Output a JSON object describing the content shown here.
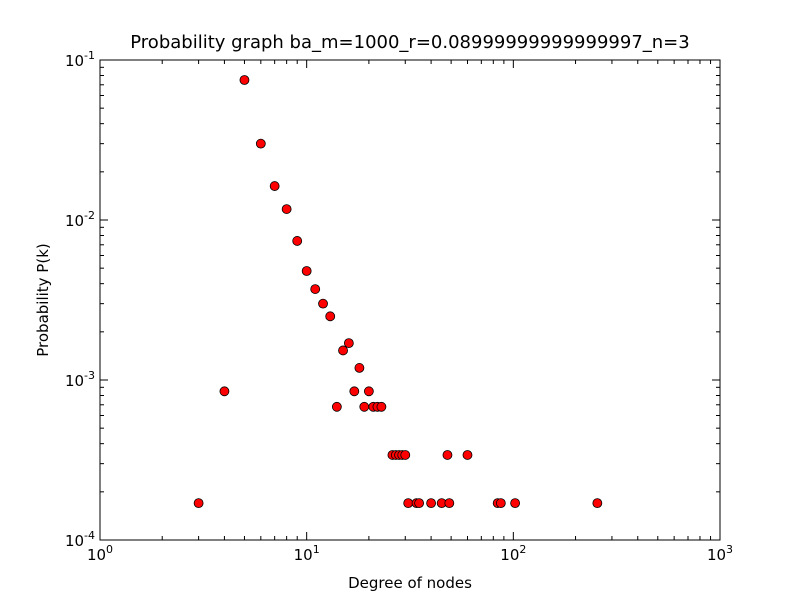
{
  "chart_data": {
    "type": "scatter",
    "title": "Probability graph ba_m=1000_r=0.08999999999999997_n=3",
    "xlabel": "Degree of nodes",
    "ylabel": "Probability P(k)",
    "xscale": "log",
    "yscale": "log",
    "xlim": [
      1,
      1000
    ],
    "ylim": [
      0.0001,
      0.1
    ],
    "grid": false,
    "legend": "none",
    "marker_color": "#ff0000",
    "marker_edge_color": "#000000",
    "x_ticks": [
      {
        "value": 1,
        "base": "10",
        "exp": "0"
      },
      {
        "value": 10,
        "base": "10",
        "exp": "1"
      },
      {
        "value": 100,
        "base": "10",
        "exp": "2"
      },
      {
        "value": 1000,
        "base": "10",
        "exp": "3"
      }
    ],
    "y_ticks": [
      {
        "value": 0.0001,
        "base": "10",
        "exp": "-4"
      },
      {
        "value": 0.001,
        "base": "10",
        "exp": "-3"
      },
      {
        "value": 0.01,
        "base": "10",
        "exp": "-2"
      },
      {
        "value": 0.1,
        "base": "10",
        "exp": "-1"
      }
    ],
    "points": [
      {
        "x": 3,
        "y": 0.00017
      },
      {
        "x": 4,
        "y": 0.00085
      },
      {
        "x": 5,
        "y": 0.075
      },
      {
        "x": 6,
        "y": 0.03
      },
      {
        "x": 7,
        "y": 0.0163
      },
      {
        "x": 8,
        "y": 0.0117
      },
      {
        "x": 9,
        "y": 0.0074
      },
      {
        "x": 10,
        "y": 0.0048
      },
      {
        "x": 11,
        "y": 0.0037
      },
      {
        "x": 12,
        "y": 0.003
      },
      {
        "x": 13,
        "y": 0.0025
      },
      {
        "x": 14,
        "y": 0.00068
      },
      {
        "x": 15,
        "y": 0.00153
      },
      {
        "x": 16,
        "y": 0.0017
      },
      {
        "x": 17,
        "y": 0.00085
      },
      {
        "x": 18,
        "y": 0.00119
      },
      {
        "x": 19,
        "y": 0.00068
      },
      {
        "x": 20,
        "y": 0.00085
      },
      {
        "x": 21,
        "y": 0.00068
      },
      {
        "x": 22,
        "y": 0.00068
      },
      {
        "x": 23,
        "y": 0.00068
      },
      {
        "x": 26,
        "y": 0.00034
      },
      {
        "x": 27,
        "y": 0.00034
      },
      {
        "x": 28,
        "y": 0.00034
      },
      {
        "x": 29,
        "y": 0.00034
      },
      {
        "x": 30,
        "y": 0.00034
      },
      {
        "x": 31,
        "y": 0.00017
      },
      {
        "x": 34,
        "y": 0.00017
      },
      {
        "x": 35,
        "y": 0.00017
      },
      {
        "x": 40,
        "y": 0.00017
      },
      {
        "x": 45,
        "y": 0.00017
      },
      {
        "x": 48,
        "y": 0.00034
      },
      {
        "x": 49,
        "y": 0.00017
      },
      {
        "x": 60,
        "y": 0.00034
      },
      {
        "x": 84,
        "y": 0.00017
      },
      {
        "x": 87,
        "y": 0.00017
      },
      {
        "x": 102,
        "y": 0.00017
      },
      {
        "x": 255,
        "y": 0.00017
      }
    ]
  }
}
